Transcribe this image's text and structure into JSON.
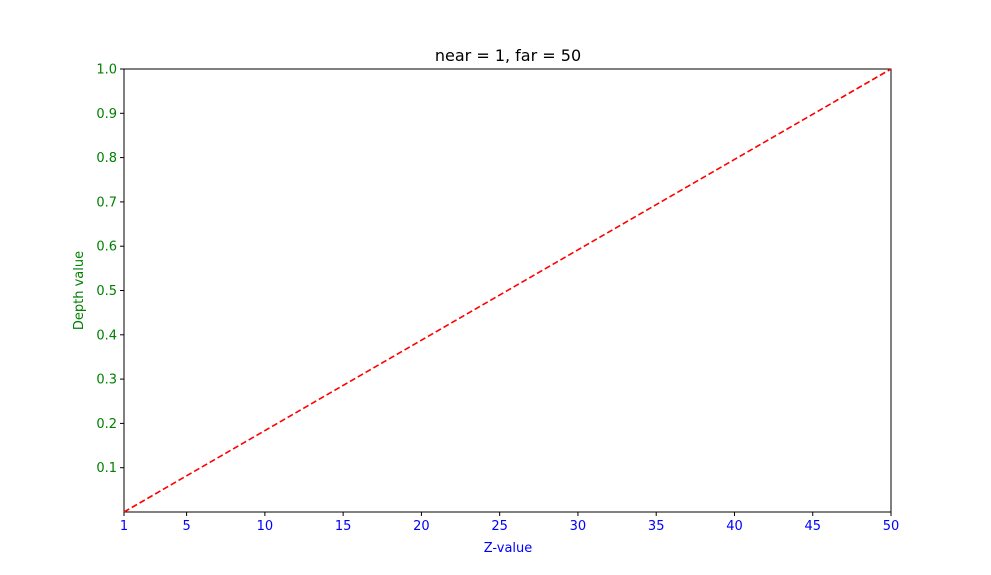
{
  "chart_data": {
    "type": "line",
    "title": "near = 1, far = 50",
    "xlabel": "Z-value",
    "ylabel": "Depth value",
    "xlim": [
      1,
      50
    ],
    "ylim": [
      0,
      1.0
    ],
    "xticks": [
      1,
      5,
      10,
      15,
      20,
      25,
      30,
      35,
      40,
      45,
      50
    ],
    "xtick_labels": [
      "1",
      "5",
      "10",
      "15",
      "20",
      "25",
      "30",
      "35",
      "40",
      "45",
      "50"
    ],
    "yticks": [
      0.1,
      0.2,
      0.3,
      0.4,
      0.5,
      0.6,
      0.7,
      0.8,
      0.9,
      1.0
    ],
    "ytick_labels": [
      "0.1",
      "0.2",
      "0.3",
      "0.4",
      "0.5",
      "0.6",
      "0.7",
      "0.8",
      "0.9",
      "1.0"
    ],
    "grid": false,
    "colors": {
      "line": "#ff0000",
      "x_axis_text": "#0000ff",
      "y_axis_text": "#008000",
      "title_text": "#000000",
      "axes": "#000000"
    },
    "series": [
      {
        "style": "dashed",
        "x": [
          1,
          50
        ],
        "y": [
          0.0,
          1.0
        ]
      }
    ]
  }
}
